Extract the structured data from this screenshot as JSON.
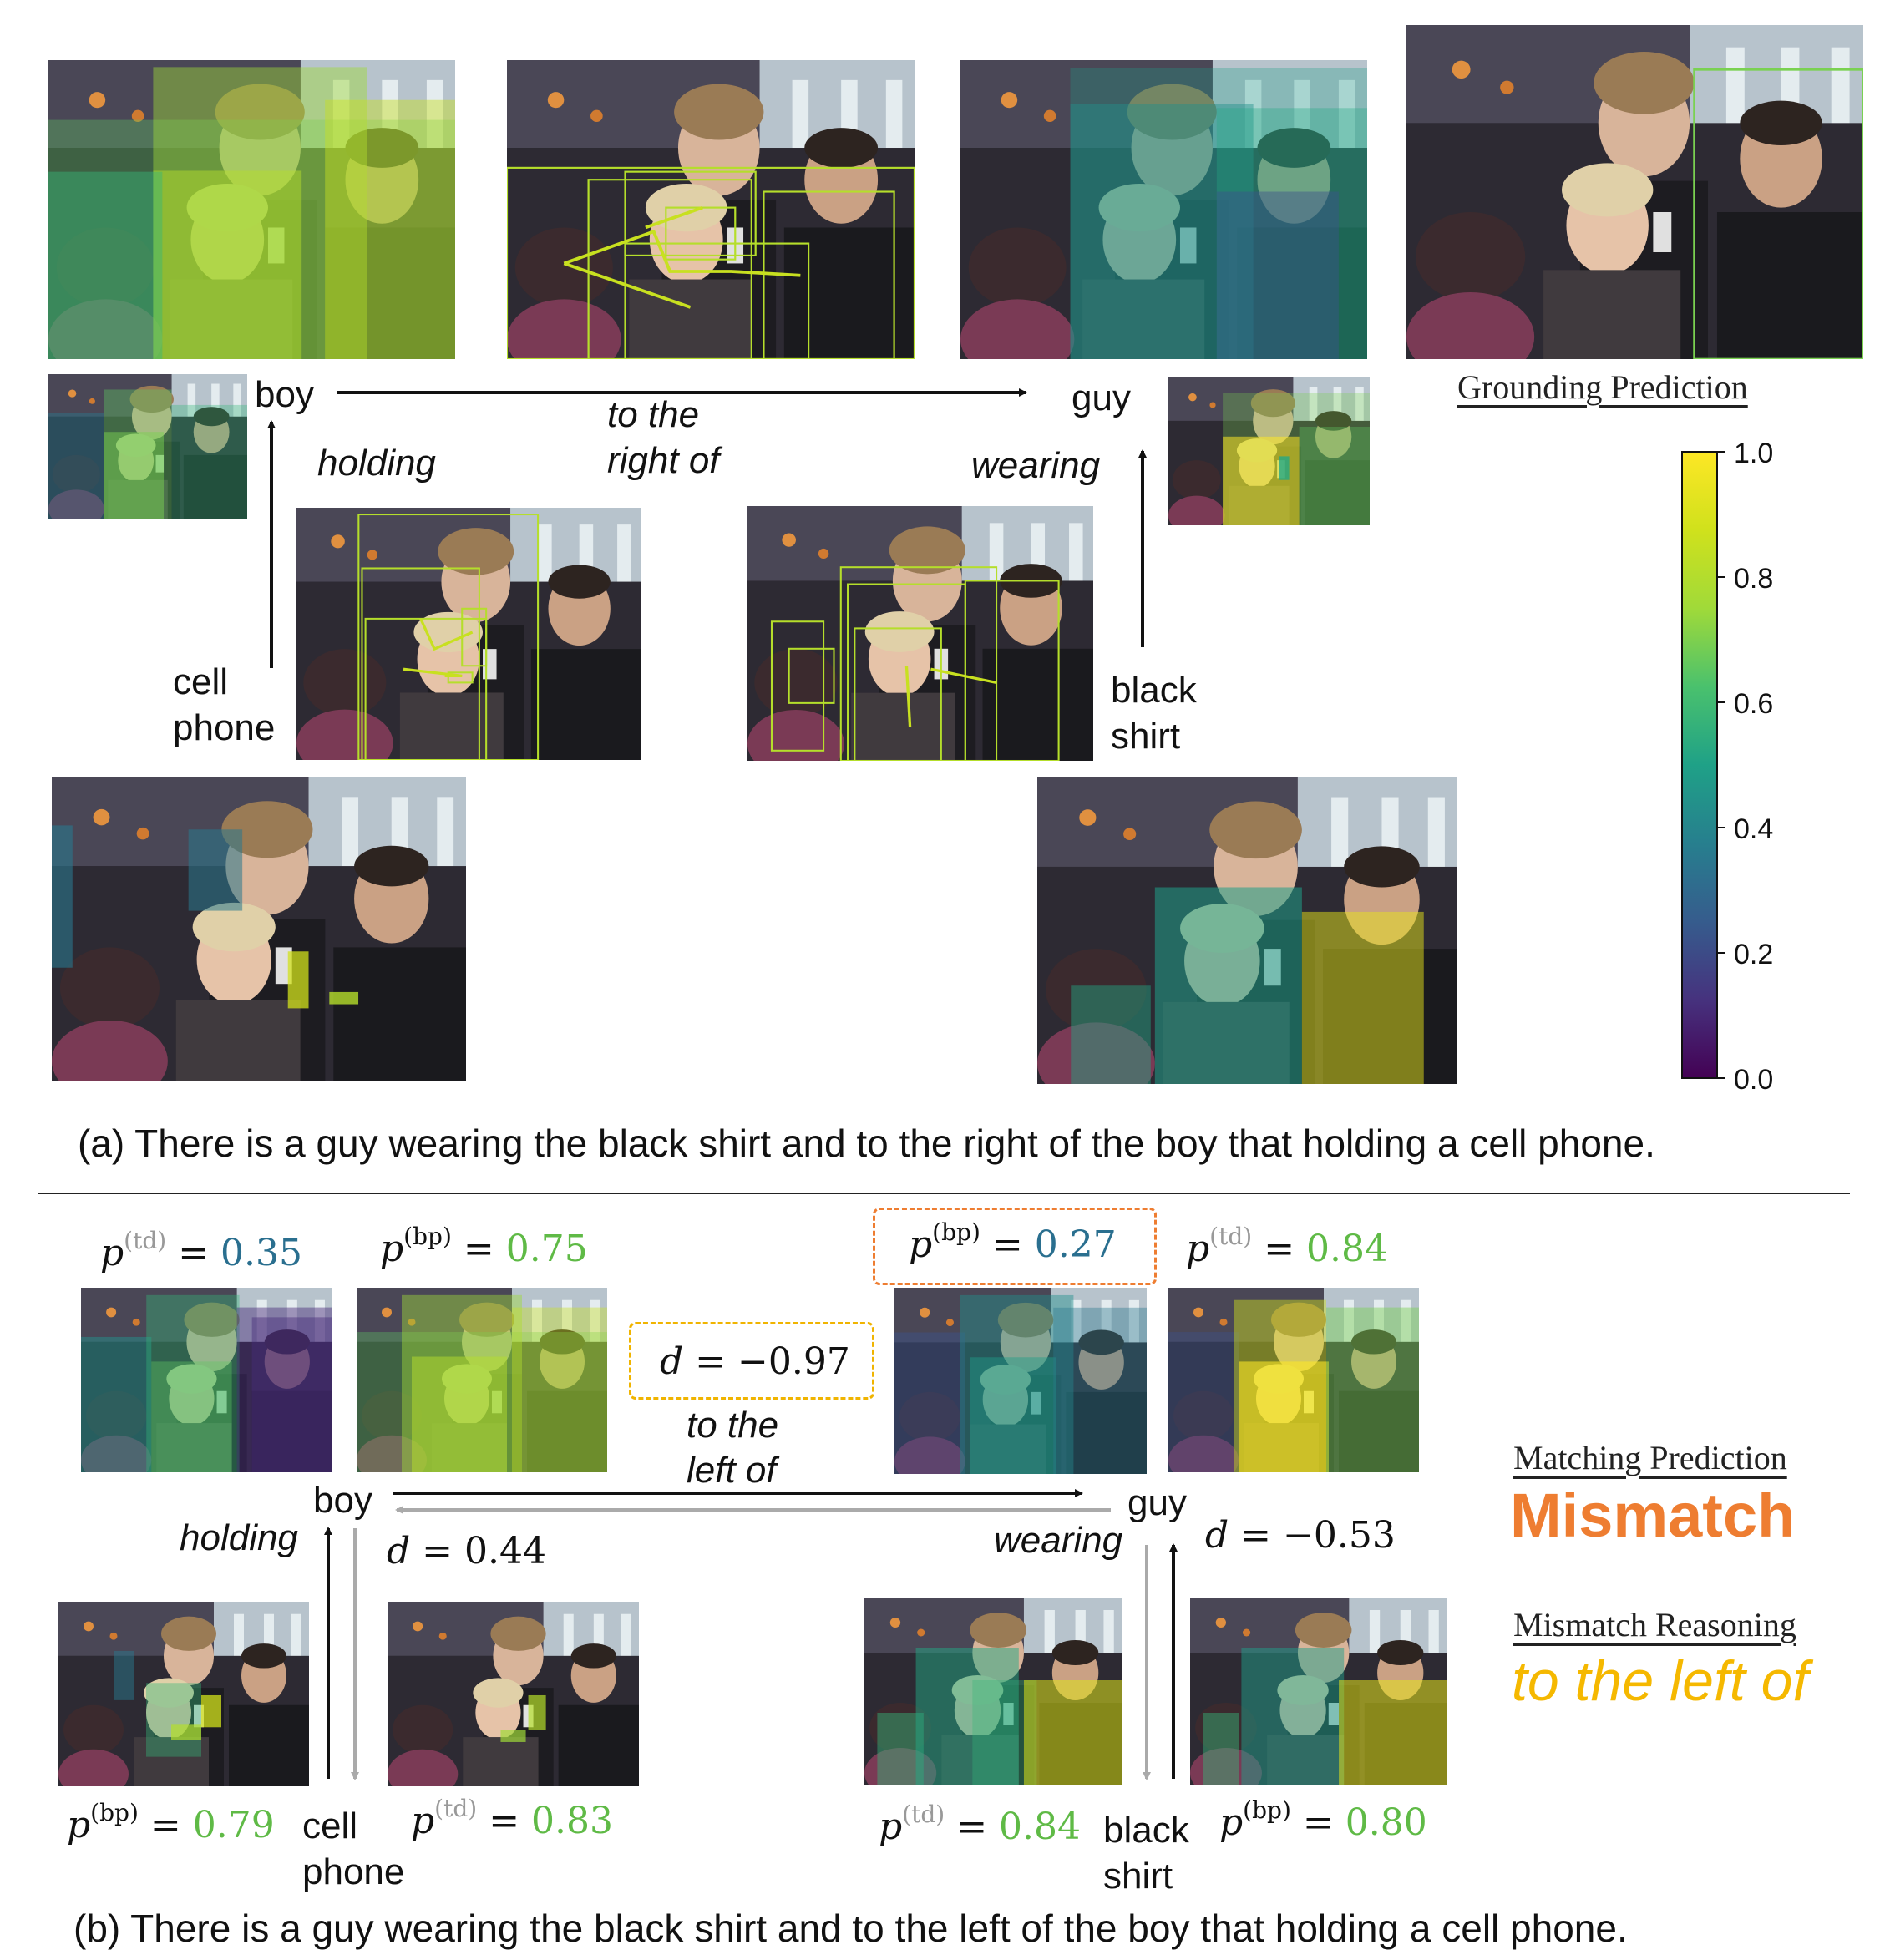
{
  "part_a": {
    "nodes": {
      "boy": "boy",
      "guy": "guy",
      "cell_phone_1": "cell",
      "cell_phone_2": "phone",
      "black_shirt_1": "black",
      "black_shirt_2": "shirt"
    },
    "edges": {
      "right_of_1": "to the",
      "right_of_2": "right of",
      "holding": "holding",
      "wearing": "wearing"
    },
    "grounding_title": "Grounding Prediction",
    "colorbar_ticks": [
      "1.0",
      "0.8",
      "0.6",
      "0.4",
      "0.2",
      "0.0"
    ],
    "caption": "(a) There is a guy wearing the black shirt and to the right of the boy that holding a cell phone."
  },
  "part_b": {
    "nodes": {
      "boy": "boy",
      "guy": "guy",
      "cell_phone_1": "cell",
      "cell_phone_2": "phone",
      "black_shirt_1": "black",
      "black_shirt_2": "shirt"
    },
    "edges": {
      "left_of_1": "to the",
      "left_of_2": "left of",
      "holding": "holding",
      "wearing": "wearing"
    },
    "scores": {
      "boy_td": "0.35",
      "boy_bp": "0.75",
      "guy_bp": "0.27",
      "guy_td": "0.84",
      "cell_bp": "0.79",
      "cell_td": "0.83",
      "shirt_td": "0.84",
      "shirt_bp": "0.80",
      "d_left": "−0.97",
      "d_holding": "0.44",
      "d_wearing": "−0.53"
    },
    "labels": {
      "td": "(td)",
      "bp": "(bp)",
      "p": "p",
      "d": "d",
      "eq": " = "
    },
    "matching_title": "Matching Prediction",
    "matching_value": "Mismatch",
    "reasoning_title": "Mismatch Reasoning",
    "reasoning_value": "to the left of",
    "caption": "(b) There is a guy wearing the black shirt and to the left of the boy that holding a cell phone."
  },
  "colors": {
    "mismatch": "#ee7d31",
    "reasoning": "#f5b800",
    "score_green": "#5fba46",
    "score_blue": "#2a6f8f",
    "dash_orange": "#ee7d31",
    "dash_yellow": "#f0b400"
  }
}
